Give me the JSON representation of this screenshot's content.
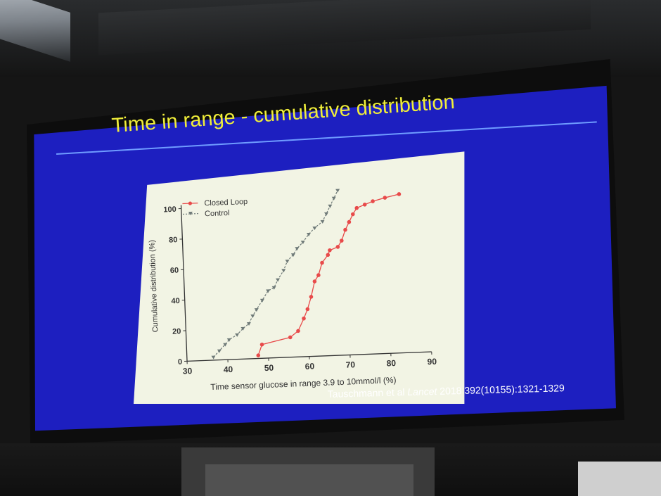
{
  "slide": {
    "title": "Time in range - cumulative distribution",
    "citation_authors": "Tauschmann et al ",
    "citation_journal": "Lancet",
    "citation_ref": " 2018 392(10155):1321-1329"
  },
  "colors": {
    "slide_background": "#1d1fc0",
    "title": "#f0ee3a",
    "closed_loop": "#e84a4a",
    "control": "#6f7a78",
    "chart_panel": "#f2f4e4"
  },
  "chart_data": {
    "type": "line",
    "xlabel": "Time sensor glucose in range 3.9 to 10mmol/l (%)",
    "ylabel": "Cumulative distribution (%)",
    "xlim": [
      30,
      90
    ],
    "ylim": [
      0,
      100
    ],
    "xticks": [
      "30",
      "40",
      "50",
      "60",
      "70",
      "80",
      "90"
    ],
    "yticks": [
      "0",
      "20",
      "40",
      "60",
      "80",
      "100"
    ],
    "legend_position": "top-left",
    "series": [
      {
        "name": "Closed Loop",
        "marker": "circle",
        "line": "solid",
        "x": [
          47.5,
          48.5,
          55.5,
          57.5,
          59.0,
          60.0,
          61.0,
          62.0,
          63.0,
          64.0,
          65.5,
          66.0,
          68.0,
          69.0,
          70.0,
          71.0,
          72.0,
          73.0,
          75.0,
          77.0,
          80.0,
          83.5
        ],
        "y": [
          2,
          9,
          13,
          17,
          25,
          31,
          39,
          49,
          53,
          61,
          66,
          69,
          71,
          75,
          82,
          87,
          92,
          96,
          98,
          100,
          102,
          104
        ]
      },
      {
        "name": "Control",
        "marker": "triangle-down",
        "line": "dashed",
        "x": [
          36.5,
          38.0,
          39.5,
          40.5,
          42.5,
          44.0,
          45.5,
          46.5,
          47.5,
          49.0,
          50.5,
          52.0,
          53.0,
          54.5,
          55.5,
          57.0,
          58.0,
          59.5,
          61.0,
          62.5,
          64.5,
          65.5,
          66.5,
          67.5,
          68.5
        ],
        "y": [
          2,
          6,
          10,
          13,
          16,
          20,
          23,
          28,
          32,
          38,
          44,
          46,
          51,
          57,
          63,
          67,
          71,
          75,
          80,
          84,
          88,
          93,
          98,
          103,
          108
        ]
      }
    ]
  }
}
